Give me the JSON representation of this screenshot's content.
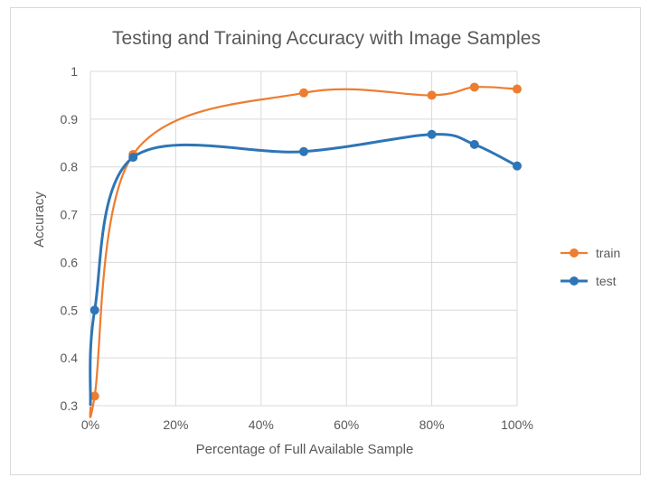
{
  "chart_data": {
    "type": "line",
    "title": "Testing and Training Accuracy with Image Samples",
    "xlabel": "Percentage of Full Available  Sample",
    "ylabel": "Accuracy",
    "xlim": [
      0,
      1
    ],
    "ylim": [
      0.3,
      1
    ],
    "x_ticks": [
      "0%",
      "20%",
      "40%",
      "60%",
      "80%",
      "100%"
    ],
    "y_ticks": [
      "0.3",
      "0.4",
      "0.5",
      "0.6",
      "0.7",
      "0.8",
      "0.9",
      "1"
    ],
    "grid": true,
    "legend_position": "right",
    "smoothed": true,
    "series": [
      {
        "name": "train",
        "color": "#ED7D31",
        "x": [
          0.01,
          0.1,
          0.5,
          0.8,
          0.9,
          1.0
        ],
        "y": [
          0.32,
          0.826,
          0.955,
          0.95,
          0.967,
          0.963
        ]
      },
      {
        "name": "test",
        "color": "#2E75B6",
        "x": [
          0.01,
          0.1,
          0.5,
          0.8,
          0.9,
          1.0
        ],
        "y": [
          0.5,
          0.82,
          0.832,
          0.868,
          0.847,
          0.802
        ]
      }
    ]
  }
}
